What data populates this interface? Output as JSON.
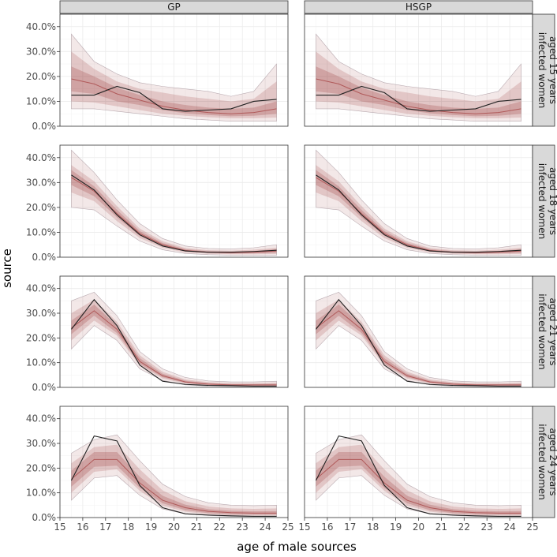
{
  "chart_data": {
    "type": "line",
    "description_style": "faceted ribbon plot (posterior bands) with observed line",
    "xlabel": "age of male sources",
    "ylabel": "source",
    "xlim": [
      15,
      25
    ],
    "ylim": [
      0,
      0.45
    ],
    "x_ticks": [
      15,
      16,
      17,
      18,
      19,
      20,
      21,
      22,
      23,
      24,
      25
    ],
    "y_ticks": [
      0,
      0.1,
      0.2,
      0.3,
      0.4
    ],
    "y_tick_labels": [
      "0.0%",
      "10.0%",
      "20.0%",
      "30.0%",
      "40.0%"
    ],
    "columns": [
      "GP",
      "HSGP"
    ],
    "rows": [
      {
        "line1": "infected women",
        "line2": "aged 15 years"
      },
      {
        "line1": "infected women",
        "line2": "aged 18 years"
      },
      {
        "line1": "infected women",
        "line2": "aged 21 years"
      },
      {
        "line1": "infected women",
        "line2": "aged 24 years"
      }
    ],
    "x": [
      15.5,
      16.5,
      17.5,
      18.5,
      19.5,
      20.5,
      21.5,
      22.5,
      23.5,
      24.5
    ],
    "colors": {
      "band": "#8b1a1a",
      "median": "#b05a5a",
      "observed": "#222222",
      "grid": "#ebebeb",
      "strip": "#d9d9d9"
    },
    "panels": [
      {
        "row": 0,
        "median": [
          0.19,
          0.17,
          0.13,
          0.105,
          0.08,
          0.065,
          0.055,
          0.05,
          0.055,
          0.07
        ],
        "q95_lo": [
          0.07,
          0.07,
          0.06,
          0.05,
          0.04,
          0.03,
          0.025,
          0.02,
          0.02,
          0.02
        ],
        "q95_hi": [
          0.37,
          0.26,
          0.21,
          0.175,
          0.16,
          0.15,
          0.14,
          0.12,
          0.14,
          0.25
        ],
        "q80_lo": [
          0.1,
          0.095,
          0.08,
          0.065,
          0.05,
          0.042,
          0.036,
          0.032,
          0.032,
          0.035
        ],
        "q80_hi": [
          0.3,
          0.23,
          0.18,
          0.15,
          0.135,
          0.12,
          0.11,
          0.1,
          0.11,
          0.18
        ],
        "q50_lo": [
          0.14,
          0.13,
          0.1,
          0.085,
          0.065,
          0.052,
          0.045,
          0.04,
          0.042,
          0.05
        ],
        "q50_hi": [
          0.24,
          0.2,
          0.155,
          0.125,
          0.1,
          0.085,
          0.075,
          0.07,
          0.075,
          0.1
        ],
        "observed": [
          0.125,
          0.125,
          0.16,
          0.135,
          0.07,
          0.06,
          0.065,
          0.07,
          0.1,
          0.108
        ]
      },
      {
        "row": 1,
        "median": [
          0.32,
          0.265,
          0.175,
          0.095,
          0.05,
          0.027,
          0.02,
          0.018,
          0.02,
          0.025
        ],
        "q95_lo": [
          0.2,
          0.19,
          0.125,
          0.065,
          0.03,
          0.015,
          0.01,
          0.008,
          0.008,
          0.008
        ],
        "q95_hi": [
          0.43,
          0.34,
          0.23,
          0.135,
          0.075,
          0.045,
          0.035,
          0.033,
          0.038,
          0.05
        ],
        "q80_lo": [
          0.26,
          0.225,
          0.145,
          0.077,
          0.038,
          0.019,
          0.014,
          0.012,
          0.012,
          0.013
        ],
        "q80_hi": [
          0.37,
          0.305,
          0.205,
          0.115,
          0.064,
          0.037,
          0.028,
          0.026,
          0.03,
          0.038
        ],
        "q50_lo": [
          0.29,
          0.245,
          0.16,
          0.086,
          0.044,
          0.023,
          0.017,
          0.015,
          0.016,
          0.018
        ],
        "q50_hi": [
          0.35,
          0.285,
          0.19,
          0.105,
          0.057,
          0.032,
          0.024,
          0.022,
          0.025,
          0.032
        ],
        "observed": [
          0.33,
          0.27,
          0.17,
          0.09,
          0.045,
          0.025,
          0.02,
          0.02,
          0.023,
          0.028
        ]
      },
      {
        "row": 2,
        "median": [
          0.24,
          0.31,
          0.235,
          0.105,
          0.047,
          0.022,
          0.013,
          0.01,
          0.01,
          0.01
        ],
        "q95_lo": [
          0.155,
          0.25,
          0.19,
          0.075,
          0.028,
          0.01,
          0.005,
          0.003,
          0.003,
          0.003
        ],
        "q95_hi": [
          0.35,
          0.385,
          0.29,
          0.145,
          0.075,
          0.04,
          0.026,
          0.022,
          0.022,
          0.025
        ],
        "q80_lo": [
          0.19,
          0.27,
          0.21,
          0.088,
          0.036,
          0.015,
          0.008,
          0.005,
          0.005,
          0.005
        ],
        "q80_hi": [
          0.3,
          0.355,
          0.265,
          0.13,
          0.063,
          0.032,
          0.021,
          0.017,
          0.017,
          0.019
        ],
        "q50_lo": [
          0.215,
          0.29,
          0.22,
          0.095,
          0.041,
          0.018,
          0.01,
          0.007,
          0.007,
          0.007
        ],
        "q50_hi": [
          0.27,
          0.335,
          0.25,
          0.118,
          0.055,
          0.027,
          0.017,
          0.013,
          0.013,
          0.014
        ],
        "observed": [
          0.235,
          0.355,
          0.25,
          0.09,
          0.025,
          0.012,
          0.008,
          0.007,
          0.005,
          0.005
        ]
      },
      {
        "row": 3,
        "median": [
          0.155,
          0.235,
          0.235,
          0.14,
          0.07,
          0.04,
          0.025,
          0.02,
          0.018,
          0.018
        ],
        "q95_lo": [
          0.07,
          0.16,
          0.17,
          0.09,
          0.035,
          0.015,
          0.008,
          0.005,
          0.004,
          0.004
        ],
        "q95_hi": [
          0.26,
          0.315,
          0.335,
          0.23,
          0.135,
          0.085,
          0.06,
          0.05,
          0.048,
          0.05
        ],
        "q80_lo": [
          0.1,
          0.185,
          0.195,
          0.108,
          0.048,
          0.024,
          0.013,
          0.009,
          0.008,
          0.008
        ],
        "q80_hi": [
          0.22,
          0.285,
          0.295,
          0.195,
          0.11,
          0.066,
          0.045,
          0.037,
          0.035,
          0.037
        ],
        "q50_lo": [
          0.125,
          0.205,
          0.21,
          0.12,
          0.058,
          0.03,
          0.018,
          0.013,
          0.012,
          0.012
        ],
        "q50_hi": [
          0.19,
          0.265,
          0.265,
          0.165,
          0.088,
          0.052,
          0.034,
          0.027,
          0.025,
          0.026
        ],
        "observed": [
          0.15,
          0.33,
          0.31,
          0.13,
          0.04,
          0.015,
          0.01,
          0.007,
          0.005,
          0.005
        ]
      }
    ]
  }
}
